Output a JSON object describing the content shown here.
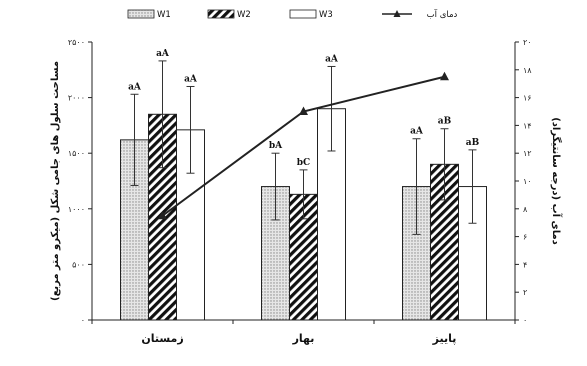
{
  "chart_data": {
    "type": "bar",
    "categories": [
      "زمستان",
      "بهار",
      "پاییز"
    ],
    "series": [
      {
        "name": "W1",
        "values": [
          1620,
          1200,
          1200
        ],
        "errors": [
          410,
          300,
          430
        ],
        "labels": [
          "aA",
          "bA",
          "aA"
        ]
      },
      {
        "name": "W2",
        "values": [
          1850,
          1130,
          1400
        ],
        "errors": [
          480,
          220,
          320
        ],
        "labels": [
          "aA",
          "bC",
          "aB"
        ]
      },
      {
        "name": "W3",
        "values": [
          1710,
          1900,
          1200
        ],
        "errors": [
          390,
          380,
          330
        ],
        "labels": [
          "aA",
          "aA",
          "aB"
        ]
      }
    ],
    "line": {
      "name": "دمای آب",
      "values": [
        7.5,
        15,
        17.5
      ]
    },
    "ylabel": "مساحت سلول های جامی شکل (میکرو متر مربع)",
    "y2label": "دمای آب (درجه سانتیگراد)",
    "ylim": [
      0,
      2500
    ],
    "yticks": [
      "۰",
      "۵۰۰",
      "۱۰۰۰",
      "۱۵۰۰",
      "۲۰۰۰",
      "۲۵۰۰"
    ],
    "y2lim": [
      0,
      20
    ],
    "y2ticks": [
      "۰",
      "۲",
      "۴",
      "۶",
      "۸",
      "۱۰",
      "۱۲",
      "۱۴",
      "۱۶",
      "۱۸",
      "۲۰"
    ],
    "legend": "top",
    "colors": {
      "W1": "#d9d9d9",
      "W2": "#111111",
      "W3": "#ffffff",
      "line": "#222222"
    }
  }
}
